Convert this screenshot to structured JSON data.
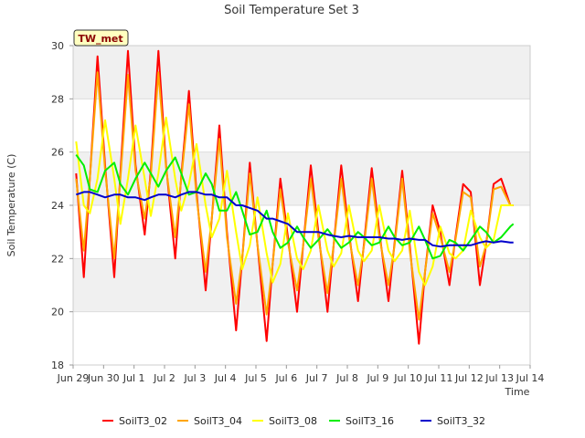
{
  "chart_data": {
    "type": "line",
    "title": "Soil Temperature Set 3",
    "xlabel": "Time",
    "ylabel": "Soil Temperature (C)",
    "ylim": [
      18,
      30
    ],
    "xlim": [
      "Jun 29",
      "Jul 14"
    ],
    "yticks": [
      18,
      20,
      22,
      24,
      26,
      28,
      30
    ],
    "xticks": [
      "Jun 29",
      "Jun 30",
      "Jul 1",
      "Jul 2",
      "Jul 3",
      "Jul 4",
      "Jul 5",
      "Jul 6",
      "Jul 7",
      "Jul 8",
      "Jul 9",
      "Jul 10",
      "Jul 11",
      "Jul 12",
      "Jul 13",
      "Jul 14"
    ],
    "grid": true,
    "banded_background": true,
    "legend_position": "bottom",
    "site_badge": "TW_met",
    "x_days": [
      0.1,
      0.35,
      0.55,
      0.8,
      1.05,
      1.35,
      1.55,
      1.8,
      2.05,
      2.35,
      2.55,
      2.8,
      3.05,
      3.35,
      3.55,
      3.8,
      4.05,
      4.35,
      4.55,
      4.8,
      5.05,
      5.35,
      5.55,
      5.8,
      6.05,
      6.35,
      6.55,
      6.8,
      7.05,
      7.35,
      7.55,
      7.8,
      8.05,
      8.35,
      8.55,
      8.8,
      9.05,
      9.35,
      9.55,
      9.8,
      10.05,
      10.35,
      10.55,
      10.8,
      11.05,
      11.35,
      11.55,
      11.8,
      12.05,
      12.35,
      12.55,
      12.8,
      13.05,
      13.35,
      13.55,
      13.8,
      14.05,
      14.35,
      14.45
    ],
    "series": [
      {
        "name": "SoilT3_02",
        "color": "#ff0000",
        "values": [
          25.2,
          21.3,
          25.0,
          29.6,
          25.5,
          21.3,
          25.2,
          29.8,
          25.5,
          22.9,
          25.3,
          29.8,
          25.5,
          22.0,
          25.1,
          28.3,
          24.5,
          20.8,
          23.5,
          27.0,
          23.0,
          19.3,
          22.0,
          25.6,
          22.5,
          18.9,
          21.8,
          25.0,
          22.8,
          20.0,
          22.5,
          25.5,
          23.0,
          20.0,
          22.5,
          25.5,
          23.0,
          20.4,
          22.6,
          25.4,
          23.0,
          20.4,
          22.6,
          25.3,
          22.5,
          18.8,
          21.5,
          24.0,
          23.0,
          21.0,
          22.8,
          24.8,
          24.5,
          21.0,
          22.5,
          24.8,
          25.0,
          24.0,
          24.0
        ]
      },
      {
        "name": "SoilT3_04",
        "color": "#ffa500",
        "values": [
          25.0,
          22.3,
          25.0,
          29.0,
          25.3,
          22.0,
          25.0,
          28.9,
          25.3,
          23.5,
          25.1,
          29.0,
          25.4,
          22.8,
          25.0,
          27.8,
          24.3,
          21.5,
          23.5,
          26.5,
          22.8,
          20.3,
          22.0,
          25.2,
          22.5,
          19.9,
          21.8,
          24.6,
          22.6,
          20.8,
          22.5,
          25.0,
          22.8,
          20.7,
          22.5,
          25.0,
          22.8,
          21.0,
          22.5,
          25.0,
          22.8,
          21.0,
          22.5,
          25.0,
          22.3,
          19.7,
          21.5,
          23.7,
          22.8,
          21.5,
          22.7,
          24.5,
          24.3,
          21.7,
          22.5,
          24.6,
          24.7,
          24.0,
          24.0
        ]
      },
      {
        "name": "SoilT3_08",
        "color": "#ffff00",
        "values": [
          26.4,
          24.0,
          23.7,
          25.0,
          27.2,
          25.0,
          23.3,
          25.0,
          27.0,
          25.0,
          23.6,
          25.2,
          27.3,
          25.0,
          23.8,
          24.8,
          26.3,
          24.0,
          22.8,
          23.5,
          25.3,
          23.0,
          21.6,
          22.5,
          24.3,
          22.2,
          21.1,
          21.8,
          23.7,
          22.0,
          21.6,
          22.3,
          24.0,
          22.3,
          21.7,
          22.2,
          24.0,
          22.3,
          21.9,
          22.3,
          24.0,
          22.3,
          21.9,
          22.3,
          23.8,
          21.5,
          21.0,
          21.7,
          23.2,
          22.2,
          22.0,
          22.3,
          23.8,
          22.8,
          22.4,
          22.7,
          24.0,
          24.0,
          24.0
        ]
      },
      {
        "name": "SoilT3_16",
        "color": "#00ee00",
        "values": [
          25.9,
          25.5,
          24.6,
          24.5,
          25.3,
          25.6,
          24.8,
          24.4,
          25.0,
          25.6,
          25.2,
          24.7,
          25.3,
          25.8,
          25.2,
          24.4,
          24.5,
          25.2,
          24.8,
          23.8,
          23.8,
          24.5,
          23.8,
          22.9,
          23.0,
          23.8,
          23.0,
          22.4,
          22.6,
          23.2,
          22.8,
          22.4,
          22.7,
          23.1,
          22.8,
          22.4,
          22.6,
          23.0,
          22.8,
          22.5,
          22.6,
          23.2,
          22.8,
          22.5,
          22.6,
          23.2,
          22.7,
          22.0,
          22.1,
          22.7,
          22.6,
          22.3,
          22.7,
          23.2,
          23.0,
          22.6,
          22.8,
          23.2,
          23.3
        ]
      },
      {
        "name": "SoilT3_32",
        "color": "#0000cc",
        "values": [
          24.4,
          24.5,
          24.5,
          24.4,
          24.3,
          24.4,
          24.4,
          24.3,
          24.3,
          24.2,
          24.3,
          24.4,
          24.4,
          24.3,
          24.4,
          24.5,
          24.5,
          24.4,
          24.4,
          24.3,
          24.3,
          24.0,
          24.0,
          23.9,
          23.8,
          23.5,
          23.5,
          23.4,
          23.3,
          23.0,
          23.0,
          23.0,
          23.0,
          22.9,
          22.85,
          22.8,
          22.85,
          22.8,
          22.8,
          22.8,
          22.8,
          22.75,
          22.75,
          22.7,
          22.75,
          22.7,
          22.7,
          22.5,
          22.45,
          22.5,
          22.5,
          22.5,
          22.5,
          22.6,
          22.65,
          22.6,
          22.65,
          22.6,
          22.6
        ]
      }
    ]
  }
}
